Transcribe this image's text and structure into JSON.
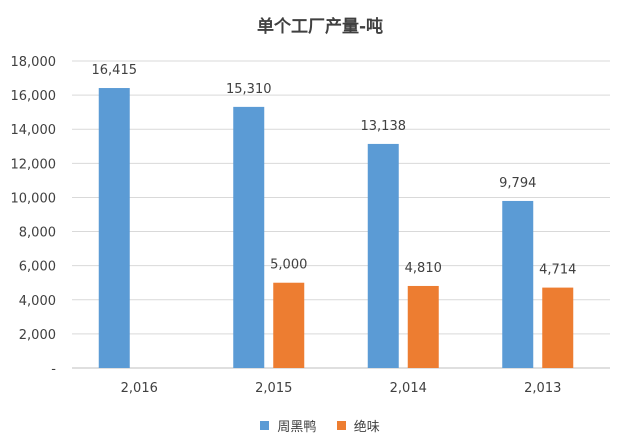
{
  "chart_data": {
    "type": "bar",
    "title": "单个工厂产量-吨",
    "categories": [
      "2,016",
      "2,015",
      "2,014",
      "2,013"
    ],
    "series": [
      {
        "name": "周黑鸭",
        "color": "#5b9bd5",
        "values": [
          16415,
          15310,
          13138,
          9794
        ],
        "labels": [
          "16,415",
          "15,310",
          "13,138",
          "9,794"
        ]
      },
      {
        "name": "绝味",
        "color": "#ed7d31",
        "values": [
          null,
          5000,
          4810,
          4714
        ],
        "labels": [
          "",
          "5,000",
          "4,810",
          "4,714"
        ]
      }
    ],
    "ylim": [
      0,
      18000
    ],
    "yticks": [
      0,
      2000,
      4000,
      6000,
      8000,
      10000,
      12000,
      14000,
      16000,
      18000
    ],
    "ytick_labels": [
      "-",
      "2,000",
      "4,000",
      "6,000",
      "8,000",
      "10,000",
      "12,000",
      "14,000",
      "16,000",
      "18,000"
    ],
    "grid": true,
    "legend_position": "bottom"
  }
}
